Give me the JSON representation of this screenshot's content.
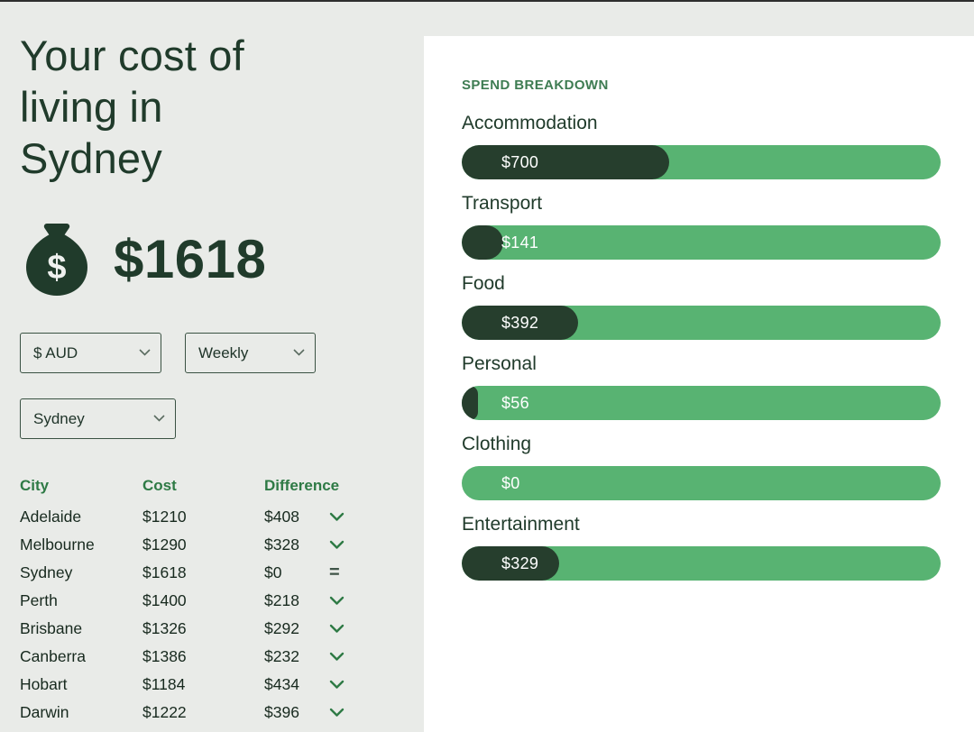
{
  "hero": {
    "title_lines": [
      "Your cost of",
      "living in",
      "Sydney"
    ],
    "total": "$1618",
    "money_bag_symbol": "$"
  },
  "controls": {
    "currency_selected": "$ AUD",
    "period_selected": "Weekly",
    "city_selected": "Sydney"
  },
  "table": {
    "headers": [
      "City",
      "Cost",
      "Difference"
    ],
    "equal_symbol": "=",
    "rows": [
      {
        "city": "Adelaide",
        "cost": "$1210",
        "difference": "$408",
        "direction": "down"
      },
      {
        "city": "Melbourne",
        "cost": "$1290",
        "difference": "$328",
        "direction": "down"
      },
      {
        "city": "Sydney",
        "cost": "$1618",
        "difference": "$0",
        "direction": "equal"
      },
      {
        "city": "Perth",
        "cost": "$1400",
        "difference": "$218",
        "direction": "down"
      },
      {
        "city": "Brisbane",
        "cost": "$1326",
        "difference": "$292",
        "direction": "down"
      },
      {
        "city": "Canberra",
        "cost": "$1386",
        "difference": "$232",
        "direction": "down"
      },
      {
        "city": "Hobart",
        "cost": "$1184",
        "difference": "$434",
        "direction": "down"
      },
      {
        "city": "Darwin",
        "cost": "$1222",
        "difference": "$396",
        "direction": "down"
      }
    ]
  },
  "breakdown": {
    "heading": "SPEND BREAKDOWN",
    "total_value": 1618,
    "items": [
      {
        "label": "Accommodation",
        "value": 700,
        "display": "$700"
      },
      {
        "label": "Transport",
        "value": 141,
        "display": "$141"
      },
      {
        "label": "Food",
        "value": 392,
        "display": "$392"
      },
      {
        "label": "Personal",
        "value": 56,
        "display": "$56"
      },
      {
        "label": "Clothing",
        "value": 0,
        "display": "$0"
      },
      {
        "label": "Entertainment",
        "value": 329,
        "display": "$329"
      }
    ]
  },
  "colors": {
    "dark_green": "#263e2d",
    "mid_green": "#58b372",
    "header_green": "#2e7a45",
    "text_green": "#203b2b",
    "background": "#e9ebe8",
    "card_background": "#ffffff"
  }
}
